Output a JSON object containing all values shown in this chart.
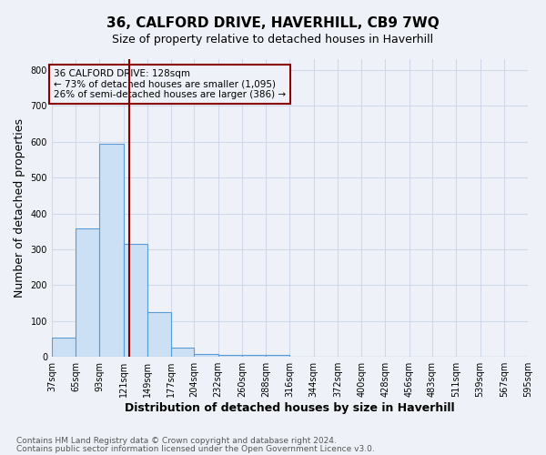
{
  "title": "36, CALFORD DRIVE, HAVERHILL, CB9 7WQ",
  "subtitle": "Size of property relative to detached houses in Haverhill",
  "xlabel": "Distribution of detached houses by size in Haverhill",
  "ylabel": "Number of detached properties",
  "footnote1": "Contains HM Land Registry data © Crown copyright and database right 2024.",
  "footnote2": "Contains public sector information licensed under the Open Government Licence v3.0.",
  "bin_edges": [
    37,
    65,
    93,
    121,
    149,
    177,
    204,
    232,
    260,
    288,
    316,
    344,
    372,
    400,
    428,
    456,
    483,
    511,
    539,
    567,
    595
  ],
  "bar_heights": [
    55,
    357,
    595,
    315,
    125,
    25,
    8,
    5,
    5,
    5,
    0,
    0,
    0,
    0,
    0,
    0,
    0,
    0,
    0,
    0
  ],
  "bar_color": "#cce0f5",
  "bar_edge_color": "#5b9bd5",
  "vline_x": 128,
  "vline_color": "#8b0000",
  "annotation_line1": "36 CALFORD DRIVE: 128sqm",
  "annotation_line2": "← 73% of detached houses are smaller (1,095)",
  "annotation_line3": "26% of semi-detached houses are larger (386) →",
  "annotation_box_color": "#8b0000",
  "annotation_text_color": "#000000",
  "ylim": [
    0,
    830
  ],
  "yticks": [
    0,
    100,
    200,
    300,
    400,
    500,
    600,
    700,
    800
  ],
  "grid_color": "#d0d8e8",
  "background_color": "#eef2f8",
  "title_fontsize": 11,
  "subtitle_fontsize": 9,
  "axis_label_fontsize": 9,
  "tick_fontsize": 7,
  "annotation_fontsize": 7.5,
  "footnote_fontsize": 6.5
}
